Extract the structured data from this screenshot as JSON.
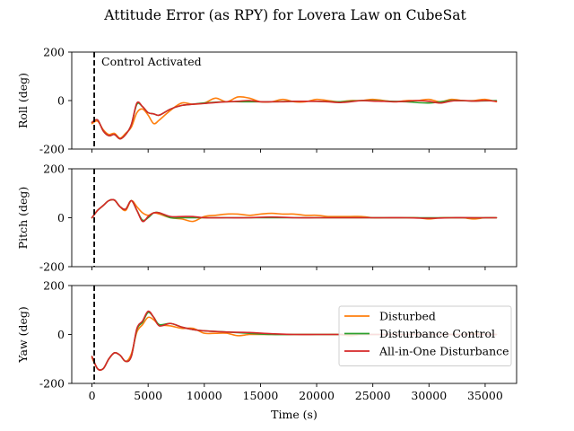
{
  "chart_data": {
    "type": "line",
    "title": "Attitude Error (as RPY) for Lovera Law on CubeSat",
    "xlabel": "Time (s)",
    "xlim": [
      -1800,
      37800
    ],
    "x_ticks": [
      0,
      5000,
      10000,
      15000,
      20000,
      25000,
      30000,
      35000
    ],
    "activation_time": 200,
    "annotation": "Control Activated",
    "legend": {
      "location": "right",
      "entries": [
        {
          "label": "Disturbed",
          "color": "#ff7f0e"
        },
        {
          "label": "Disturbance Control",
          "color": "#2ca02c"
        },
        {
          "label": "All-in-One Disturbance",
          "color": "#d62728"
        }
      ]
    },
    "subplots": [
      {
        "ylabel": "Roll (deg)",
        "ylim": [
          -200,
          200
        ],
        "y_ticks": [
          -200,
          0,
          200
        ],
        "series": [
          {
            "name": "Disturbed",
            "color": "#ff7f0e",
            "x": [
              0,
              500,
              1000,
              1500,
              2000,
              2500,
              3000,
              3500,
              4000,
              4500,
              5000,
              5500,
              6000,
              7000,
              8000,
              9000,
              10000,
              11000,
              12000,
              13000,
              14000,
              15000,
              16000,
              17000,
              18000,
              19000,
              20000,
              21000,
              22000,
              23000,
              24000,
              25000,
              26000,
              27000,
              28000,
              29000,
              30000,
              31000,
              32000,
              33000,
              34000,
              35000,
              36000
            ],
            "y": [
              -95,
              -85,
              -120,
              -140,
              -135,
              -155,
              -135,
              -110,
              -50,
              -35,
              -60,
              -95,
              -80,
              -40,
              -10,
              -15,
              -10,
              10,
              -5,
              15,
              10,
              -5,
              -5,
              5,
              -5,
              -5,
              5,
              0,
              -5,
              0,
              0,
              5,
              0,
              -5,
              0,
              0,
              5,
              -5,
              5,
              0,
              0,
              5,
              -5
            ]
          },
          {
            "name": "Disturbance Control",
            "color": "#2ca02c",
            "x": [
              0,
              500,
              1000,
              1500,
              2000,
              2500,
              3000,
              3500,
              4000,
              4500,
              5000,
              5500,
              6000,
              7000,
              8000,
              9000,
              10000,
              12000,
              14000,
              16000,
              18000,
              20000,
              22000,
              24000,
              26000,
              28000,
              30000,
              32000,
              34000,
              36000
            ],
            "y": [
              -90,
              -80,
              -125,
              -145,
              -140,
              -158,
              -140,
              -100,
              -15,
              -25,
              -50,
              -55,
              -60,
              -35,
              -20,
              -15,
              -10,
              -5,
              -5,
              -5,
              -3,
              -3,
              -5,
              0,
              -2,
              -5,
              -10,
              0,
              -2,
              0
            ]
          },
          {
            "name": "All-in-One Disturbance",
            "color": "#d62728",
            "x": [
              0,
              500,
              1000,
              1500,
              2000,
              2500,
              3000,
              3500,
              4000,
              4500,
              5000,
              5500,
              6000,
              7000,
              8000,
              9000,
              10000,
              11000,
              12000,
              13000,
              14000,
              15000,
              16000,
              17000,
              18000,
              19000,
              20000,
              21000,
              22000,
              23000,
              24000,
              25000,
              26000,
              27000,
              28000,
              29000,
              30000,
              31000,
              32000,
              33000,
              34000,
              35000,
              36000
            ],
            "y": [
              -90,
              -80,
              -125,
              -145,
              -140,
              -158,
              -140,
              -100,
              -10,
              -25,
              -50,
              -55,
              -60,
              -35,
              -20,
              -15,
              -12,
              -8,
              -5,
              -3,
              0,
              -5,
              -5,
              -5,
              -3,
              -3,
              -3,
              -5,
              -8,
              -5,
              0,
              -2,
              -3,
              -5,
              -3,
              0,
              -3,
              -10,
              -2,
              0,
              -2,
              0,
              -3
            ]
          }
        ]
      },
      {
        "ylabel": "Pitch (deg)",
        "ylim": [
          -200,
          200
        ],
        "y_ticks": [
          -200,
          0,
          200
        ],
        "series": [
          {
            "name": "Disturbed",
            "color": "#ff7f0e",
            "x": [
              0,
              500,
              1000,
              1500,
              2000,
              2500,
              3000,
              3500,
              4000,
              4500,
              5000,
              5500,
              6000,
              7000,
              8000,
              9000,
              10000,
              11000,
              12000,
              13000,
              14000,
              15000,
              16000,
              17000,
              18000,
              19000,
              20000,
              21000,
              22000,
              23000,
              24000,
              25000,
              26000,
              27000,
              28000,
              29000,
              30000,
              31000,
              32000,
              33000,
              34000,
              35000,
              36000
            ],
            "y": [
              0,
              30,
              50,
              70,
              72,
              45,
              30,
              70,
              45,
              20,
              10,
              20,
              15,
              0,
              -5,
              -15,
              5,
              10,
              15,
              15,
              10,
              15,
              18,
              15,
              15,
              10,
              10,
              5,
              5,
              5,
              5,
              0,
              0,
              0,
              0,
              0,
              -5,
              0,
              0,
              0,
              -5,
              0,
              0
            ]
          },
          {
            "name": "Disturbance Control",
            "color": "#2ca02c",
            "x": [
              0,
              500,
              1000,
              1500,
              2000,
              2500,
              3000,
              3500,
              4000,
              4500,
              5000,
              5500,
              6000,
              7000,
              8000,
              9000,
              10000,
              12000,
              14000,
              16000,
              18000,
              20000,
              22000,
              24000,
              26000,
              28000,
              30000,
              32000,
              34000,
              36000
            ],
            "y": [
              0,
              30,
              50,
              70,
              72,
              45,
              35,
              70,
              30,
              -10,
              0,
              20,
              20,
              0,
              0,
              0,
              0,
              0,
              0,
              0,
              0,
              0,
              0,
              0,
              0,
              0,
              0,
              0,
              0,
              0
            ]
          },
          {
            "name": "All-in-One Disturbance",
            "color": "#d62728",
            "x": [
              0,
              500,
              1000,
              1500,
              2000,
              2500,
              3000,
              3500,
              4000,
              4500,
              5000,
              5500,
              6000,
              7000,
              8000,
              9000,
              10000,
              12000,
              14000,
              16000,
              18000,
              20000,
              22000,
              24000,
              26000,
              28000,
              30000,
              32000,
              34000,
              36000
            ],
            "y": [
              0,
              30,
              50,
              70,
              72,
              45,
              35,
              70,
              30,
              -15,
              5,
              20,
              20,
              5,
              5,
              5,
              0,
              0,
              0,
              3,
              0,
              0,
              0,
              0,
              0,
              0,
              -2,
              0,
              0,
              0
            ]
          }
        ]
      },
      {
        "ylabel": "Yaw (deg)",
        "ylim": [
          -200,
          200
        ],
        "y_ticks": [
          -200,
          0,
          200
        ],
        "series": [
          {
            "name": "Disturbed",
            "color": "#ff7f0e",
            "x": [
              0,
              500,
              1000,
              1500,
              2000,
              2500,
              3000,
              3500,
              4000,
              4500,
              5000,
              5500,
              6000,
              7000,
              8000,
              9000,
              10000,
              11000,
              12000,
              13000,
              14000,
              15000,
              16000,
              17000,
              18000,
              19000,
              20000,
              21000,
              22000,
              23000,
              24000,
              25000,
              26000,
              27000,
              28000,
              29000,
              30000,
              31000,
              32000,
              33000,
              34000,
              35000,
              36000
            ],
            "y": [
              -95,
              -140,
              -140,
              -100,
              -75,
              -85,
              -110,
              -80,
              10,
              40,
              70,
              60,
              40,
              35,
              25,
              25,
              5,
              5,
              5,
              -5,
              0,
              0,
              0,
              0,
              0,
              0,
              0,
              0,
              0,
              -5,
              0,
              0,
              0,
              0,
              0,
              0,
              0,
              0,
              0,
              0,
              5,
              0,
              0
            ]
          },
          {
            "name": "Disturbance Control",
            "color": "#2ca02c",
            "x": [
              0,
              500,
              1000,
              1500,
              2000,
              2500,
              3000,
              3500,
              4000,
              4500,
              5000,
              5500,
              6000,
              7000,
              8000,
              9000,
              10000,
              12000,
              14000,
              16000,
              18000,
              20000,
              22000,
              24000,
              26000,
              28000,
              30000,
              32000,
              34000,
              36000
            ],
            "y": [
              -90,
              -140,
              -140,
              -100,
              -75,
              -85,
              -110,
              -90,
              20,
              50,
              90,
              70,
              40,
              45,
              30,
              20,
              15,
              10,
              5,
              0,
              0,
              0,
              0,
              0,
              0,
              0,
              0,
              0,
              0,
              0
            ]
          },
          {
            "name": "All-in-One Disturbance",
            "color": "#d62728",
            "x": [
              0,
              500,
              1000,
              1500,
              2000,
              2500,
              3000,
              3500,
              4000,
              4500,
              5000,
              5500,
              6000,
              7000,
              8000,
              9000,
              10000,
              12000,
              14000,
              16000,
              18000,
              20000,
              22000,
              24000,
              26000,
              28000,
              30000,
              32000,
              34000,
              36000
            ],
            "y": [
              -90,
              -140,
              -140,
              -100,
              -75,
              -85,
              -110,
              -90,
              25,
              55,
              95,
              70,
              35,
              45,
              30,
              20,
              15,
              10,
              8,
              3,
              0,
              0,
              0,
              0,
              0,
              0,
              0,
              0,
              0,
              0
            ]
          }
        ]
      }
    ]
  }
}
